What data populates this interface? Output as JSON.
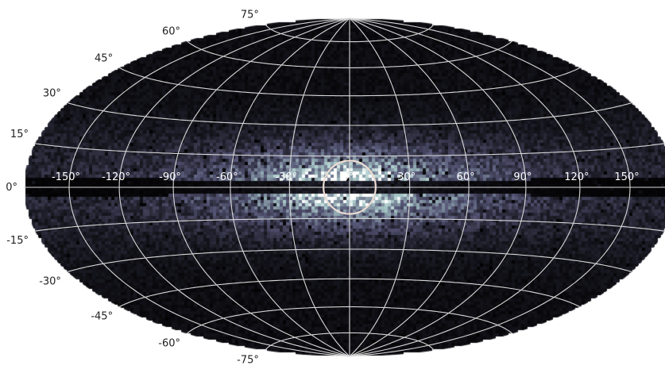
{
  "chart_data": {
    "type": "heatmap",
    "projection": "hammer",
    "title": "",
    "xlabel": "",
    "ylabel": "",
    "colormap": [
      "#000000",
      "#545474",
      "#a7c7c7",
      "#ffffff"
    ],
    "grid": true,
    "grid_color": "#d8d8d8",
    "lon_ticks": [
      -150,
      -120,
      -90,
      -60,
      -30,
      0,
      30,
      60,
      90,
      120,
      150
    ],
    "lon_tick_labels": [
      "-150°",
      "-120°",
      "-90°",
      "-60°",
      "-30°",
      "0°",
      "30°",
      "60°",
      "90°",
      "120°",
      "150°"
    ],
    "lat_ticks": [
      75,
      60,
      45,
      30,
      15,
      0,
      -15,
      -30,
      -45,
      -60,
      -75
    ],
    "lat_tick_labels": [
      "75°",
      "60°",
      "45°",
      "30°",
      "15°",
      "0°",
      "-15°",
      "-30°",
      "-45°",
      "-60°",
      "-75°"
    ],
    "lon_range": [
      -180,
      180
    ],
    "lat_range": [
      -90,
      90
    ],
    "annotation": {
      "type": "circle",
      "center": [
        0,
        0
      ],
      "radius_deg": 13,
      "color": "#ecdcd4"
    }
  }
}
